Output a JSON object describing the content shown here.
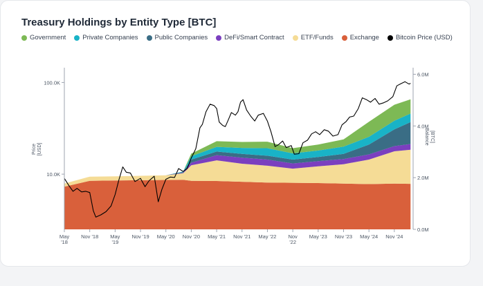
{
  "chart_data": {
    "type": "area",
    "title": "Treasury Holdings by Entity Type [BTC]",
    "y_left_label": [
      "Price",
      "[USD]"
    ],
    "y_right_label": [
      "Balance",
      "[BTC]"
    ],
    "y_left_scale": "log",
    "y_left_range": [
      2500,
      140000
    ],
    "y_left_ticks": [
      {
        "value": 10000,
        "label": "10.0K"
      },
      {
        "value": 100000,
        "label": "100.0K"
      }
    ],
    "y_right_range": [
      0,
      6200000
    ],
    "y_right_ticks": [
      {
        "value": 0,
        "label": "0.0M"
      },
      {
        "value": 2000000,
        "label": "2.0M"
      },
      {
        "value": 4000000,
        "label": "4.0M"
      },
      {
        "value": 6000000,
        "label": "6.0M"
      }
    ],
    "x_range": [
      2018.33,
      2025.2
    ],
    "x_ticks": [
      {
        "value": 2018.33,
        "label": [
          "May",
          "'18"
        ]
      },
      {
        "value": 2018.83,
        "label": [
          "Nov '18"
        ]
      },
      {
        "value": 2019.33,
        "label": [
          "May",
          "'19"
        ]
      },
      {
        "value": 2019.83,
        "label": [
          "Nov '19"
        ]
      },
      {
        "value": 2020.33,
        "label": [
          "May '20"
        ]
      },
      {
        "value": 2020.83,
        "label": [
          "Nov '20"
        ]
      },
      {
        "value": 2021.33,
        "label": [
          "May '21"
        ]
      },
      {
        "value": 2021.83,
        "label": [
          "Nov '21"
        ]
      },
      {
        "value": 2022.33,
        "label": [
          "May '22"
        ]
      },
      {
        "value": 2022.83,
        "label": [
          "Nov",
          "'22"
        ]
      },
      {
        "value": 2023.33,
        "label": [
          "May '23"
        ]
      },
      {
        "value": 2023.83,
        "label": [
          "Nov '23"
        ]
      },
      {
        "value": 2024.33,
        "label": [
          "May '24"
        ]
      },
      {
        "value": 2024.83,
        "label": [
          "Nov '24"
        ]
      }
    ],
    "x": [
      2018.33,
      2018.83,
      2019.33,
      2019.83,
      2020.33,
      2020.67,
      2020.83,
      2021.33,
      2021.83,
      2022.33,
      2022.83,
      2023.33,
      2023.83,
      2024.33,
      2024.83,
      2025.15
    ],
    "series": [
      {
        "name": "Exchange",
        "color": "#d9603b",
        "values": [
          1650000,
          1880000,
          1890000,
          1900000,
          1910000,
          1920000,
          1880000,
          1870000,
          1840000,
          1810000,
          1800000,
          1790000,
          1770000,
          1750000,
          1770000,
          1760000
        ]
      },
      {
        "name": "ETF/Funds",
        "color": "#f5dc96",
        "values": [
          120000,
          160000,
          160000,
          170000,
          180000,
          250000,
          600000,
          800000,
          700000,
          650000,
          550000,
          650000,
          750000,
          950000,
          1250000,
          1320000
        ]
      },
      {
        "name": "DeFi/Smart Contract",
        "color": "#7b3fbf",
        "values": [
          0,
          0,
          0,
          0,
          0,
          20000,
          100000,
          200000,
          230000,
          240000,
          200000,
          200000,
          200000,
          200000,
          200000,
          220000
        ]
      },
      {
        "name": "Public Companies",
        "color": "#3a6d85",
        "values": [
          0,
          0,
          0,
          0,
          0,
          30000,
          120000,
          140000,
          150000,
          150000,
          150000,
          160000,
          200000,
          380000,
          650000,
          850000
        ]
      },
      {
        "name": "Private Companies",
        "color": "#19b3c7",
        "values": [
          0,
          0,
          0,
          0,
          0,
          20000,
          130000,
          180000,
          230000,
          290000,
          240000,
          250000,
          280000,
          300000,
          330000,
          330000
        ]
      },
      {
        "name": "Government",
        "color": "#7db955",
        "values": [
          0,
          0,
          0,
          0,
          0,
          0,
          100000,
          220000,
          230000,
          250000,
          200000,
          230000,
          280000,
          580000,
          620000,
          550000
        ]
      }
    ],
    "price_series": {
      "name": "Bitcoin Price (USD)",
      "color": "#000000",
      "points": [
        [
          2018.33,
          9000
        ],
        [
          2018.42,
          7500
        ],
        [
          2018.5,
          6500
        ],
        [
          2018.58,
          7000
        ],
        [
          2018.67,
          6400
        ],
        [
          2018.75,
          6500
        ],
        [
          2018.83,
          6300
        ],
        [
          2018.9,
          4000
        ],
        [
          2018.95,
          3400
        ],
        [
          2019.05,
          3600
        ],
        [
          2019.15,
          3900
        ],
        [
          2019.25,
          4500
        ],
        [
          2019.33,
          6000
        ],
        [
          2019.4,
          8500
        ],
        [
          2019.48,
          12000
        ],
        [
          2019.55,
          10500
        ],
        [
          2019.63,
          10300
        ],
        [
          2019.72,
          8300
        ],
        [
          2019.83,
          9000
        ],
        [
          2019.92,
          7300
        ],
        [
          2020.0,
          8500
        ],
        [
          2020.1,
          9500
        ],
        [
          2020.18,
          5000
        ],
        [
          2020.25,
          6800
        ],
        [
          2020.33,
          8800
        ],
        [
          2020.42,
          9300
        ],
        [
          2020.5,
          9200
        ],
        [
          2020.58,
          11500
        ],
        [
          2020.67,
          10700
        ],
        [
          2020.75,
          11500
        ],
        [
          2020.83,
          15000
        ],
        [
          2020.92,
          19000
        ],
        [
          2021.0,
          32000
        ],
        [
          2021.05,
          35000
        ],
        [
          2021.12,
          48000
        ],
        [
          2021.2,
          58000
        ],
        [
          2021.28,
          56000
        ],
        [
          2021.33,
          52000
        ],
        [
          2021.38,
          37000
        ],
        [
          2021.45,
          34000
        ],
        [
          2021.5,
          33000
        ],
        [
          2021.55,
          38000
        ],
        [
          2021.62,
          47000
        ],
        [
          2021.7,
          44000
        ],
        [
          2021.75,
          48000
        ],
        [
          2021.8,
          61000
        ],
        [
          2021.85,
          65000
        ],
        [
          2021.92,
          50000
        ],
        [
          2022.0,
          43000
        ],
        [
          2022.08,
          38000
        ],
        [
          2022.15,
          44000
        ],
        [
          2022.25,
          46000
        ],
        [
          2022.33,
          38000
        ],
        [
          2022.4,
          29000
        ],
        [
          2022.48,
          20000
        ],
        [
          2022.55,
          21000
        ],
        [
          2022.63,
          23000
        ],
        [
          2022.7,
          19500
        ],
        [
          2022.8,
          20500
        ],
        [
          2022.86,
          16500
        ],
        [
          2022.95,
          16700
        ],
        [
          2023.03,
          22000
        ],
        [
          2023.12,
          23500
        ],
        [
          2023.2,
          27500
        ],
        [
          2023.28,
          29000
        ],
        [
          2023.36,
          27000
        ],
        [
          2023.45,
          30500
        ],
        [
          2023.53,
          29500
        ],
        [
          2023.62,
          26000
        ],
        [
          2023.72,
          27000
        ],
        [
          2023.8,
          34500
        ],
        [
          2023.88,
          37500
        ],
        [
          2023.95,
          42000
        ],
        [
          2024.03,
          43000
        ],
        [
          2024.12,
          52000
        ],
        [
          2024.2,
          68000
        ],
        [
          2024.28,
          65000
        ],
        [
          2024.36,
          61000
        ],
        [
          2024.45,
          67000
        ],
        [
          2024.53,
          58000
        ],
        [
          2024.62,
          60000
        ],
        [
          2024.7,
          63000
        ],
        [
          2024.8,
          70000
        ],
        [
          2024.88,
          92000
        ],
        [
          2024.96,
          97000
        ],
        [
          2025.04,
          102000
        ],
        [
          2025.12,
          96000
        ],
        [
          2025.15,
          98000
        ]
      ]
    }
  },
  "legend_items": [
    {
      "label": "Government",
      "color": "#7db955"
    },
    {
      "label": "Private Companies",
      "color": "#19b3c7"
    },
    {
      "label": "Public Companies",
      "color": "#3a6d85"
    },
    {
      "label": "DeFi/Smart Contract",
      "color": "#7b3fbf"
    },
    {
      "label": "ETF/Funds",
      "color": "#f5dc96"
    },
    {
      "label": "Exchange",
      "color": "#d9603b"
    },
    {
      "label": "Bitcoin Price (USD)",
      "color": "#000000"
    }
  ]
}
